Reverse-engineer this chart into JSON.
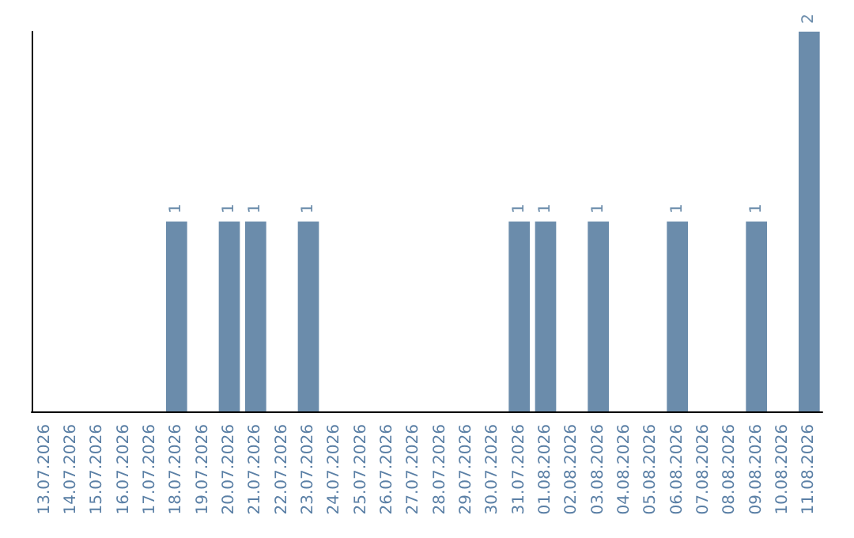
{
  "chart_data": {
    "type": "bar",
    "categories": [
      "13.07.2026",
      "14.07.2026",
      "15.07.2026",
      "16.07.2026",
      "17.07.2026",
      "18.07.2026",
      "19.07.2026",
      "20.07.2026",
      "21.07.2026",
      "22.07.2026",
      "23.07.2026",
      "24.07.2026",
      "25.07.2026",
      "26.07.2026",
      "27.07.2026",
      "28.07.2026",
      "29.07.2026",
      "30.07.2026",
      "31.07.2026",
      "01.08.2026",
      "02.08.2026",
      "03.08.2026",
      "04.08.2026",
      "05.08.2026",
      "06.08.2026",
      "07.08.2026",
      "08.08.2026",
      "09.08.2026",
      "10.08.2026",
      "11.08.2026"
    ],
    "values": [
      0,
      0,
      0,
      0,
      0,
      1,
      0,
      1,
      1,
      0,
      1,
      0,
      0,
      0,
      0,
      0,
      0,
      0,
      1,
      1,
      0,
      1,
      0,
      0,
      1,
      0,
      0,
      1,
      0,
      2
    ],
    "value_labels": [
      null,
      null,
      null,
      null,
      null,
      "1",
      null,
      "1",
      "1",
      null,
      "1",
      null,
      null,
      null,
      null,
      null,
      null,
      null,
      "1",
      "1",
      null,
      "1",
      null,
      null,
      "1",
      null,
      null,
      "1",
      null,
      "2"
    ],
    "color": "#6b8cab",
    "tick_labels": "x"
  }
}
